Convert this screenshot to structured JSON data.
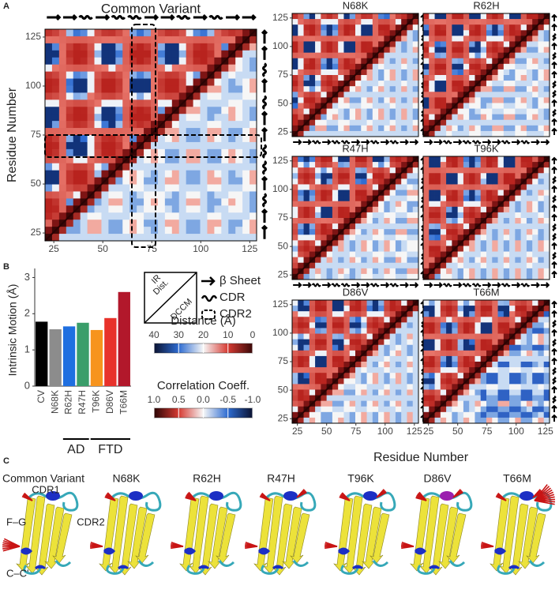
{
  "panel_labels": [
    "A",
    "B",
    "C"
  ],
  "panel_a": {
    "title": "Common Variant",
    "y_label": "Residue Number",
    "x_label": "Residue Number",
    "xlim": [
      20.5,
      128.5
    ],
    "ylim": [
      21,
      129
    ],
    "xticks": [
      25,
      50,
      75,
      100,
      125
    ],
    "yticks": [
      25,
      50,
      75,
      100,
      125
    ],
    "variants": [
      "N68K",
      "R62H",
      "R47H",
      "T96K",
      "D86V",
      "T66M"
    ]
  },
  "chart_data": {
    "type": "bar",
    "y_label": "Intrinsic Motion (Å)",
    "categories": [
      "CV",
      "N68K",
      "R62H",
      "R47H",
      "T96K",
      "D86V",
      "T66M"
    ],
    "values": [
      1.78,
      1.57,
      1.65,
      1.75,
      1.55,
      1.88,
      2.6
    ],
    "colors": [
      "#000000",
      "#8c8c8c",
      "#1f6fe0",
      "#3a9e6a",
      "#f7941d",
      "#e8322b",
      "#b2182b"
    ],
    "ylim": [
      0,
      3.25
    ],
    "yticks": [
      0,
      1,
      2,
      3
    ],
    "groups": [
      {
        "label": "AD",
        "from": "R62H",
        "to": "R47H"
      },
      {
        "label": "FTD",
        "from": "T96K",
        "to": "T66M"
      }
    ]
  },
  "legend": {
    "box": [
      "IR",
      "Dist.",
      "DCCM"
    ],
    "items": [
      "β Sheet",
      "CDR",
      "CDR2"
    ]
  },
  "colorbars": [
    {
      "title": "Distance (Å)",
      "lim": [
        40,
        0
      ],
      "ticks": [
        40,
        30,
        20,
        10,
        0
      ]
    },
    {
      "title": "Correlation Coeff.",
      "lim": [
        1,
        -1
      ],
      "ticks": [
        {
          "value": 1,
          "label": "1.0"
        },
        0.5,
        {
          "value": 0,
          "label": "0.0"
        },
        -0.5,
        {
          "value": -1,
          "label": "-1.0"
        }
      ]
    }
  ],
  "panel_c": {
    "structures": [
      "Common Variant",
      "N68K",
      "R62H",
      "R47H",
      "T96K",
      "D86V",
      "T66M"
    ],
    "annotations": [
      "CDR1",
      "CDR2",
      "F–G",
      "C–C'"
    ]
  }
}
